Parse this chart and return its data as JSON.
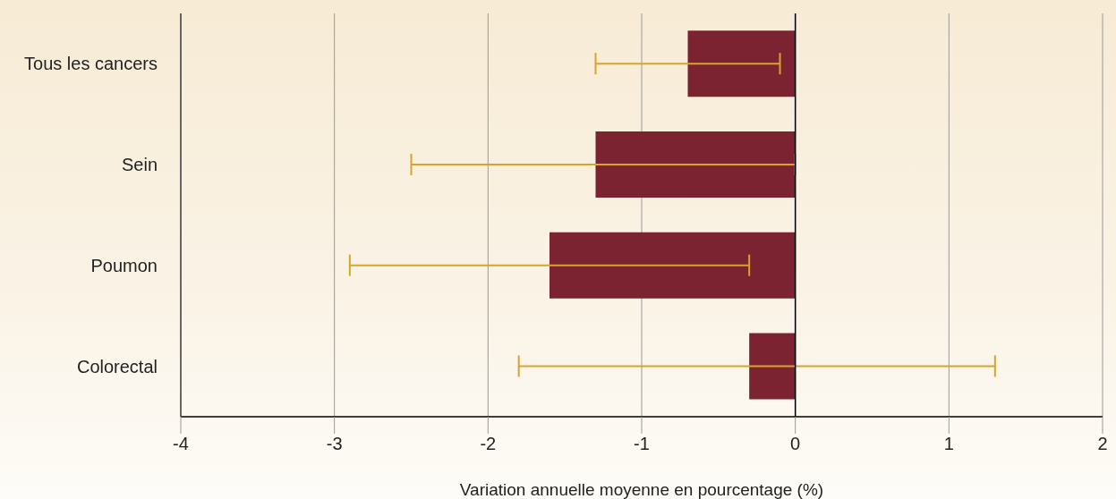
{
  "chart_data": {
    "type": "bar",
    "orientation": "horizontal",
    "categories": [
      "Tous les cancers",
      "Sein",
      "Poumon",
      "Colorectal"
    ],
    "values": [
      -0.7,
      -1.3,
      -1.6,
      -0.3
    ],
    "color": "#7b2330",
    "errors": [
      [
        -1.3,
        -0.1
      ],
      [
        -2.5,
        0.0
      ],
      [
        -2.9,
        -0.3
      ],
      [
        -1.8,
        1.3
      ]
    ],
    "xlim": [
      -4,
      2
    ],
    "xticks": [
      -4,
      -3,
      -2,
      -1,
      0,
      1,
      2
    ],
    "xlabel": "Variation annuelle moyenne en pourcentage (%)",
    "grid": "x",
    "ref_lines": [
      {
        "axis": "x",
        "value": 0,
        "color": "#000000"
      }
    ]
  }
}
